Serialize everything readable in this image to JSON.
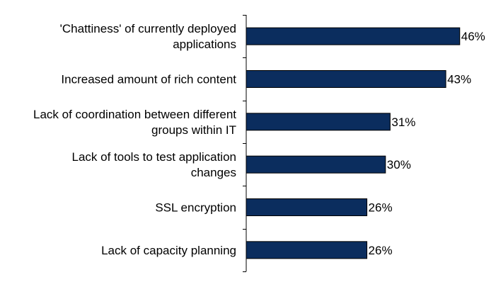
{
  "chart_data": {
    "type": "bar",
    "orientation": "horizontal",
    "categories": [
      [
        "'Chattiness' of currently deployed",
        "applications"
      ],
      [
        "Increased amount of rich content"
      ],
      [
        "Lack of coordination between different",
        "groups within IT"
      ],
      [
        "Lack of tools to test application",
        "changes"
      ],
      [
        "SSL encryption"
      ],
      [
        "Lack of capacity planning"
      ]
    ],
    "values": [
      46,
      43,
      31,
      30,
      26,
      26
    ],
    "value_labels": [
      "46%",
      "43%",
      "31%",
      "30%",
      "26%",
      "26%"
    ],
    "value_unit": "%",
    "bar_color": "#0b2d5e",
    "bar_outline": "#000000",
    "title": "",
    "xlabel": "",
    "ylabel": "",
    "legend": "none",
    "grid": false
  }
}
